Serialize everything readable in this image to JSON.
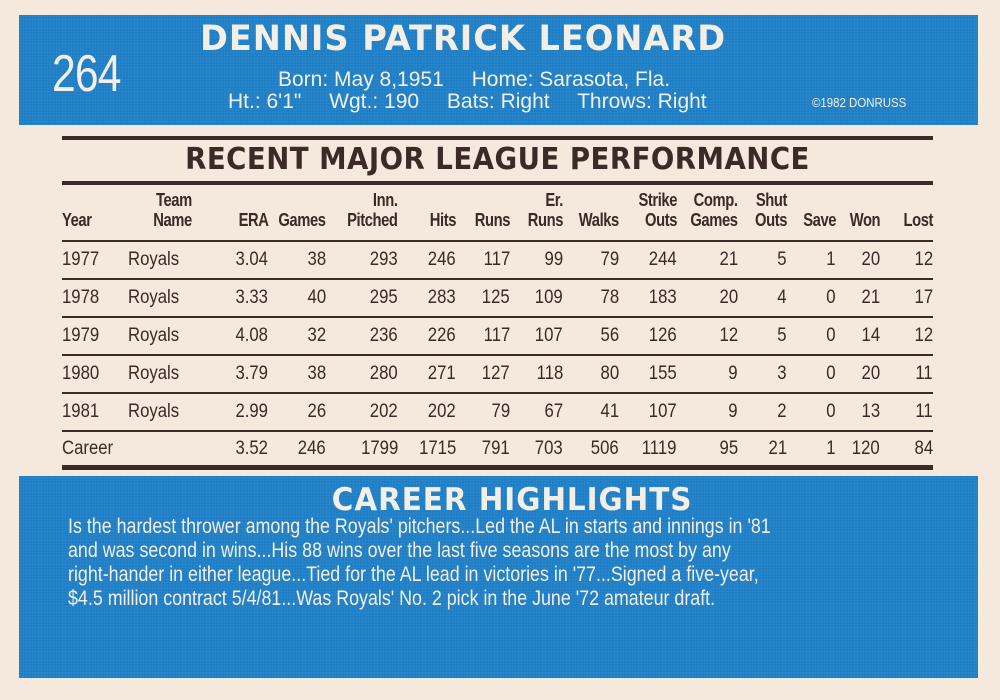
{
  "card": {
    "number": "264",
    "player_name": "DENNIS PATRICK LEONARD",
    "bio": {
      "born": "Born: May 8,1951",
      "home": "Home: Sarasota, Fla.",
      "height": "Ht.: 6'1\"",
      "weight": "Wgt.: 190",
      "bats": "Bats: Right",
      "throws": "Throws: Right"
    },
    "copyright": "©1982 DONRUSS",
    "colors": {
      "blue": "#1f7fc6",
      "card_stock": "#f4e9dc",
      "ink": "#3b2a26",
      "text_light": "#f4efe6"
    }
  },
  "stats": {
    "title": "RECENT MAJOR LEAGUE PERFORMANCE",
    "columns": [
      {
        "top": "",
        "bottom": "Year"
      },
      {
        "top": "Team",
        "bottom": "Name"
      },
      {
        "top": "",
        "bottom": "ERA"
      },
      {
        "top": "",
        "bottom": "Games"
      },
      {
        "top": "Inn.",
        "bottom": "Pitched"
      },
      {
        "top": "",
        "bottom": "Hits"
      },
      {
        "top": "",
        "bottom": "Runs"
      },
      {
        "top": "Er.",
        "bottom": "Runs"
      },
      {
        "top": "",
        "bottom": "Walks"
      },
      {
        "top": "Strike",
        "bottom": "Outs"
      },
      {
        "top": "Comp.",
        "bottom": "Games"
      },
      {
        "top": "Shut",
        "bottom": "Outs"
      },
      {
        "top": "",
        "bottom": "Save"
      },
      {
        "top": "",
        "bottom": "Won"
      },
      {
        "top": "",
        "bottom": "Lost"
      }
    ],
    "rows": [
      [
        "1977",
        "Royals",
        "3.04",
        "38",
        "293",
        "246",
        "117",
        "99",
        "79",
        "244",
        "21",
        "5",
        "1",
        "20",
        "12"
      ],
      [
        "1978",
        "Royals",
        "3.33",
        "40",
        "295",
        "283",
        "125",
        "109",
        "78",
        "183",
        "20",
        "4",
        "0",
        "21",
        "17"
      ],
      [
        "1979",
        "Royals",
        "4.08",
        "32",
        "236",
        "226",
        "117",
        "107",
        "56",
        "126",
        "12",
        "5",
        "0",
        "14",
        "12"
      ],
      [
        "1980",
        "Royals",
        "3.79",
        "38",
        "280",
        "271",
        "127",
        "118",
        "80",
        "155",
        "9",
        "3",
        "0",
        "20",
        "11"
      ],
      [
        "1981",
        "Royals",
        "2.99",
        "26",
        "202",
        "202",
        "79",
        "67",
        "41",
        "107",
        "9",
        "2",
        "0",
        "13",
        "11"
      ],
      [
        "Career",
        "",
        "3.52",
        "246",
        "1799",
        "1715",
        "791",
        "703",
        "506",
        "1119",
        "95",
        "21",
        "1",
        "120",
        "84"
      ]
    ]
  },
  "highlights": {
    "title": "CAREER HIGHLIGHTS",
    "lines": [
      "Is the hardest thrower among the Royals' pitchers...Led the AL in starts and innings in '81",
      "and was second in wins...His 88 wins over the last five seasons are the most by any",
      "right-hander in either league...Tied for the AL lead in victories in '77...Signed a five-year,",
      "$4.5 million contract 5/4/81...Was Royals' No. 2 pick in the June '72 amateur draft."
    ]
  },
  "chart_data": {
    "type": "table",
    "title": "RECENT MAJOR LEAGUE PERFORMANCE",
    "columns": [
      "Year",
      "Team Name",
      "ERA",
      "Games",
      "Inn. Pitched",
      "Hits",
      "Runs",
      "Er. Runs",
      "Walks",
      "Strike Outs",
      "Comp. Games",
      "Shut Outs",
      "Save",
      "Won",
      "Lost"
    ],
    "rows": [
      [
        "1977",
        "Royals",
        3.04,
        38,
        293,
        246,
        117,
        99,
        79,
        244,
        21,
        5,
        1,
        20,
        12
      ],
      [
        "1978",
        "Royals",
        3.33,
        40,
        295,
        283,
        125,
        109,
        78,
        183,
        20,
        4,
        0,
        21,
        17
      ],
      [
        "1979",
        "Royals",
        4.08,
        32,
        236,
        226,
        117,
        107,
        56,
        126,
        12,
        5,
        0,
        14,
        12
      ],
      [
        "1980",
        "Royals",
        3.79,
        38,
        280,
        271,
        127,
        118,
        80,
        155,
        9,
        3,
        0,
        20,
        11
      ],
      [
        "1981",
        "Royals",
        2.99,
        26,
        202,
        202,
        79,
        67,
        41,
        107,
        9,
        2,
        0,
        13,
        11
      ],
      [
        "Career",
        "",
        3.52,
        246,
        1799,
        1715,
        791,
        703,
        506,
        1119,
        95,
        21,
        1,
        120,
        84
      ]
    ]
  }
}
